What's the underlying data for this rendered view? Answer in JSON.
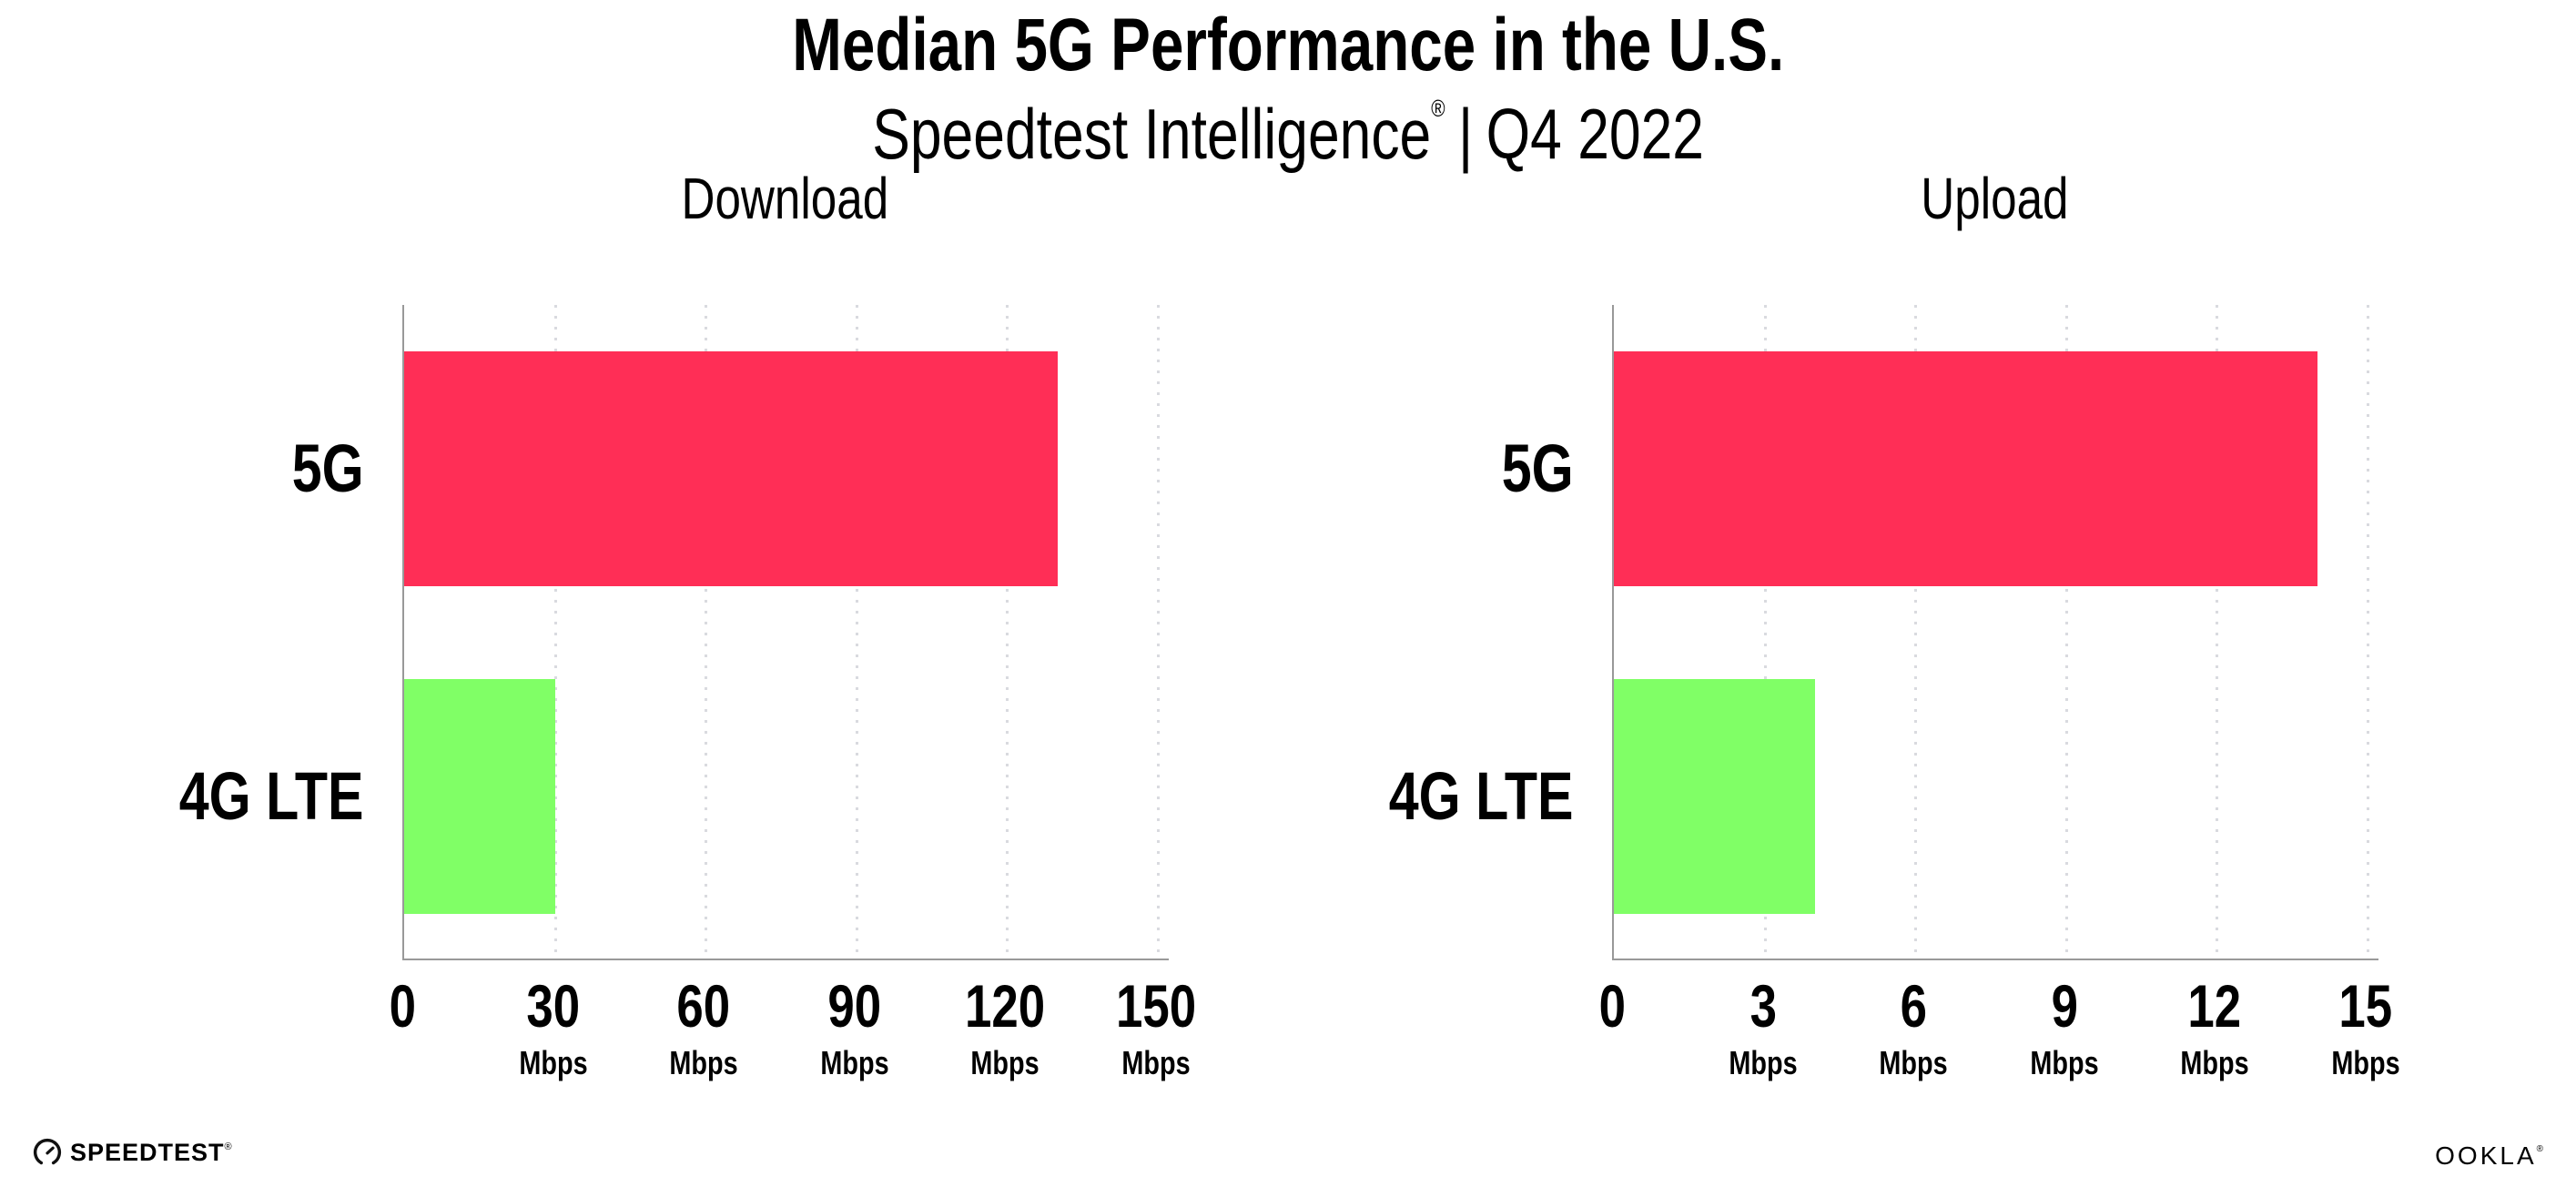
{
  "header": {
    "title": "Median 5G Performance in the U.S.",
    "subtitle_brand": "Speedtest Intelligence",
    "subtitle_reg": "®",
    "subtitle_separator": "|",
    "subtitle_period": "Q4 2022"
  },
  "colors": {
    "bar_5g": "#FF2E56",
    "bar_4g_lte": "#80FF66",
    "axis": "#999999",
    "gridline": "#D9DADF",
    "text": "#000000",
    "background": "#FFFFFF"
  },
  "chart_data": [
    {
      "type": "bar",
      "orientation": "horizontal",
      "title": "Download",
      "categories": [
        "5G",
        "4G LTE"
      ],
      "values": [
        130,
        30
      ],
      "unit": "Mbps",
      "xlim": [
        0,
        150
      ],
      "xticks": [
        0,
        30,
        60,
        90,
        120,
        150
      ],
      "grid": "dotted-vertical",
      "bar_colors": [
        "#FF2E56",
        "#80FF66"
      ]
    },
    {
      "type": "bar",
      "orientation": "horizontal",
      "title": "Upload",
      "categories": [
        "5G",
        "4G LTE"
      ],
      "values": [
        14,
        4
      ],
      "unit": "Mbps",
      "xlim": [
        0,
        15
      ],
      "xticks": [
        0,
        3,
        6,
        9,
        12,
        15
      ],
      "grid": "dotted-vertical",
      "bar_colors": [
        "#FF2E56",
        "#80FF66"
      ]
    }
  ],
  "footer": {
    "speedtest_label": "SPEEDTEST",
    "speedtest_reg": "®",
    "speedtest_icon": "gauge-icon",
    "ookla_label": "OOKLA",
    "ookla_reg": "®"
  }
}
